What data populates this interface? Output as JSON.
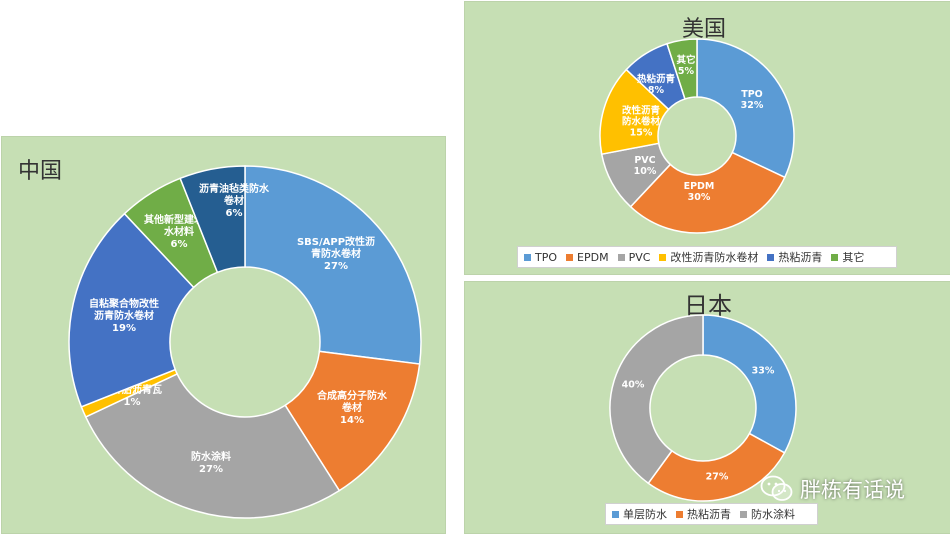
{
  "chart_data": [
    {
      "type": "pie",
      "title": "中国",
      "categories": [
        "SBS/APP改性沥青防水卷材",
        "合成高分子防水卷材",
        "防水涂料",
        "玻纤胎沥青瓦",
        "自粘聚合物改性沥青防水卷材",
        "其他新型建筑防水材料",
        "沥青油毡类防水卷材"
      ],
      "values": [
        27,
        14,
        27,
        1,
        19,
        6,
        6
      ],
      "value_labels": [
        "27%",
        "14%",
        "27%",
        "1%",
        "19%",
        "6%",
        "6%"
      ],
      "label_lines": [
        [
          "SBS/APP改性沥",
          "青防水卷材"
        ],
        [
          "合成高分子防水",
          "卷材"
        ],
        [
          "防水涂料"
        ],
        [
          "玻纤胎沥青瓦"
        ],
        [
          "自粘聚合物改性",
          "沥青防水卷材"
        ],
        [
          "其他新型建筑防",
          "水材料"
        ],
        [
          "沥青油毡类防水",
          "卷材"
        ]
      ],
      "colors": [
        "#5b9bd5",
        "#ed7d31",
        "#a5a5a5",
        "#ffc000",
        "#4472c4",
        "#70ad47",
        "#255e91"
      ],
      "legend": []
    },
    {
      "type": "pie",
      "title": "美国",
      "categories": [
        "TPO",
        "EPDM",
        "PVC",
        "改性沥青防水卷材",
        "热粘沥青",
        "其它"
      ],
      "values": [
        32,
        30,
        10,
        15,
        8,
        5
      ],
      "value_labels": [
        "32%",
        "30%",
        "10%",
        "15%",
        "8%",
        "5%"
      ],
      "label_lines": [
        [
          "TPO"
        ],
        [
          "EPDM"
        ],
        [
          "PVC"
        ],
        [
          "改性沥青",
          "防水卷材"
        ],
        [
          "热粘沥青"
        ],
        [
          "其它"
        ]
      ],
      "colors": [
        "#5b9bd5",
        "#ed7d31",
        "#a5a5a5",
        "#ffc000",
        "#4472c4",
        "#70ad47"
      ],
      "legend": [
        "TPO",
        "EPDM",
        "PVC",
        "改性沥青防水卷材",
        "热粘沥青",
        "其它"
      ]
    },
    {
      "type": "pie",
      "title": "日本",
      "categories": [
        "单层防水",
        "热粘沥青",
        "防水涂料"
      ],
      "values": [
        33,
        27,
        40
      ],
      "value_labels": [
        "33%",
        "27%",
        "40%"
      ],
      "label_lines": [
        [],
        [],
        []
      ],
      "colors": [
        "#5b9bd5",
        "#ed7d31",
        "#a5a5a5"
      ],
      "legend": [
        "单层防水",
        "热粘沥青",
        "防水涂料"
      ]
    }
  ],
  "watermark": {
    "text": "胖栋有话说",
    "icon": "wechat-icon"
  }
}
